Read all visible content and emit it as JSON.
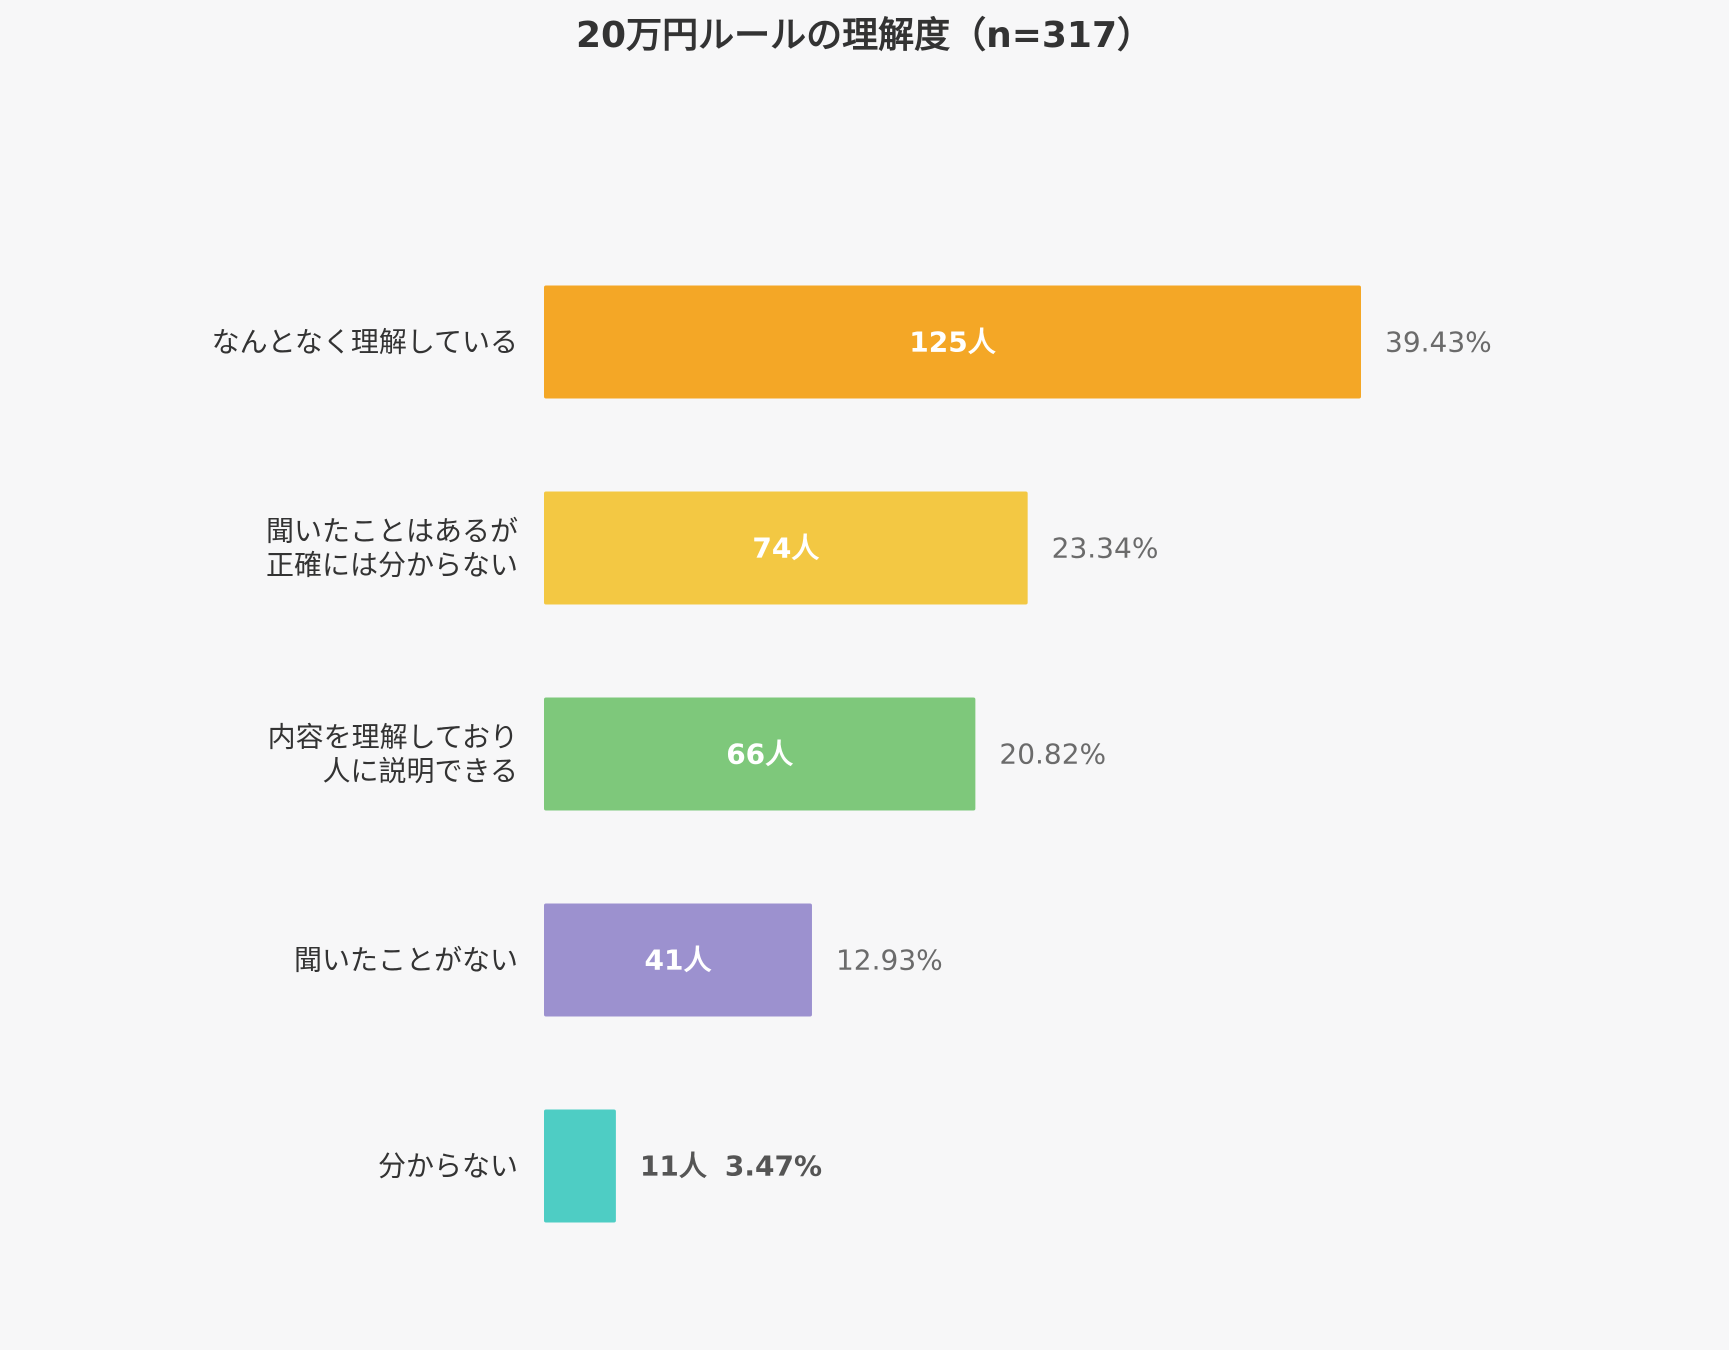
{
  "chart_data": {
    "type": "bar",
    "orientation": "horizontal",
    "title": "20万円ルールの理解度（n=317）",
    "categories": [
      [
        "なんとなく理解している"
      ],
      [
        "聞いたことはあるが",
        "正確には分からない"
      ],
      [
        "内容を理解しており",
        "人に説明できる"
      ],
      [
        "聞いたことがない"
      ],
      [
        "分からない"
      ]
    ],
    "values": [
      125,
      74,
      66,
      41,
      11
    ],
    "count_labels": [
      "125人",
      "74人",
      "66人",
      "41人",
      "11人"
    ],
    "percent_labels": [
      "39.43%",
      "23.34%",
      "20.82%",
      "12.93%",
      "3.47%"
    ],
    "colors": [
      "#f4a726",
      "#f3c843",
      "#7ec87b",
      "#9c91cf",
      "#4ecdc4"
    ],
    "xlim": [
      0,
      125
    ],
    "grid": false,
    "legend": "none"
  }
}
